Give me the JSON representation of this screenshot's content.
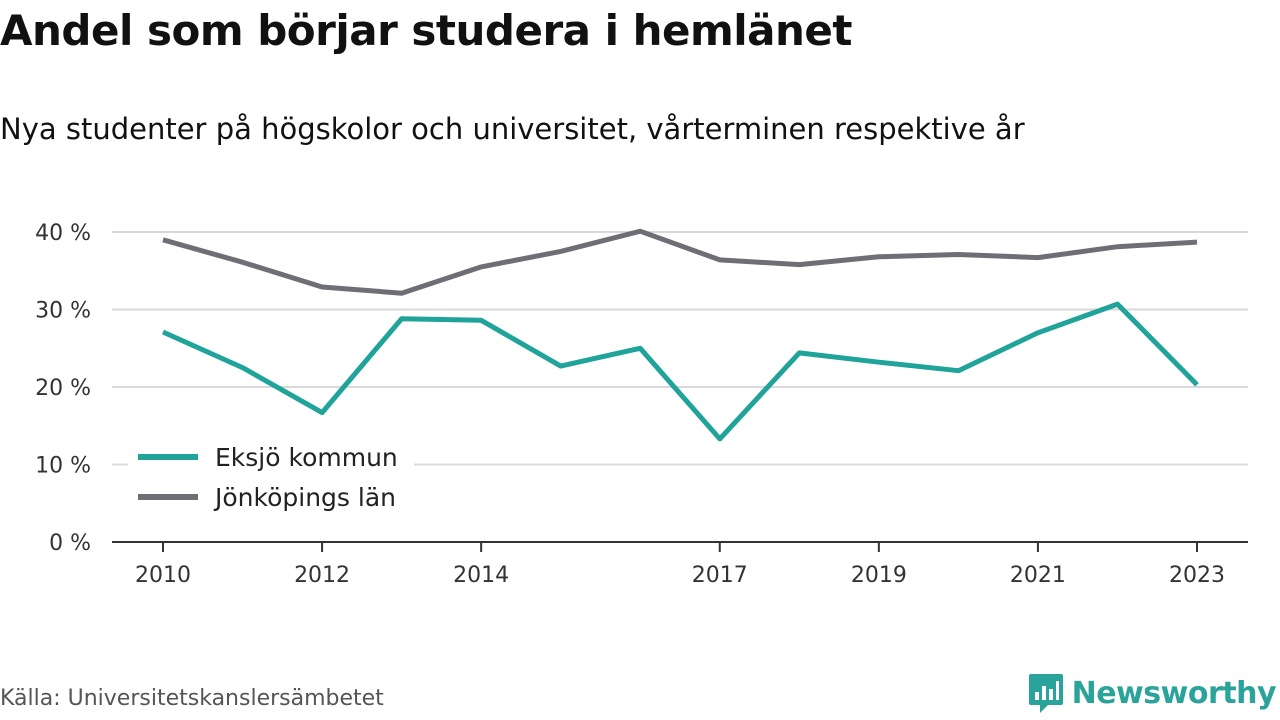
{
  "title": "Andel som börjar studera i hemlänet",
  "subtitle": "Nya studenter på högskolor och universitet, vårterminen respektive år",
  "source": "Källa: Universitetskanslersämbetet",
  "brand": {
    "name": "Newsworthy",
    "icon": "newsworthy-logo-icon",
    "color": "#2aa39a"
  },
  "chart_data": {
    "type": "line",
    "x": [
      2010,
      2011,
      2012,
      2013,
      2014,
      2015,
      2016,
      2017,
      2018,
      2019,
      2020,
      2021,
      2022,
      2023
    ],
    "x_ticks": [
      "2010",
      "2012",
      "2014",
      "2017",
      "2019",
      "2021",
      "2023"
    ],
    "y_ticks": [
      "0 %",
      "10 %",
      "20 %",
      "30 %",
      "40 %"
    ],
    "ylim": [
      0,
      40
    ],
    "grid": true,
    "legend_position": "bottom-left",
    "series": [
      {
        "name": "Eksjö kommun",
        "color": "#1fa39a",
        "values": [
          27.1,
          22.5,
          16.7,
          28.8,
          28.6,
          22.7,
          25.0,
          13.3,
          24.4,
          23.2,
          22.1,
          27.0,
          30.7,
          20.3
        ]
      },
      {
        "name": "Jönköpings län",
        "color": "#6f6e76",
        "values": [
          39.0,
          36.1,
          32.9,
          32.1,
          35.5,
          37.5,
          40.1,
          36.4,
          35.8,
          36.8,
          37.1,
          36.7,
          38.1,
          38.7
        ]
      }
    ]
  }
}
